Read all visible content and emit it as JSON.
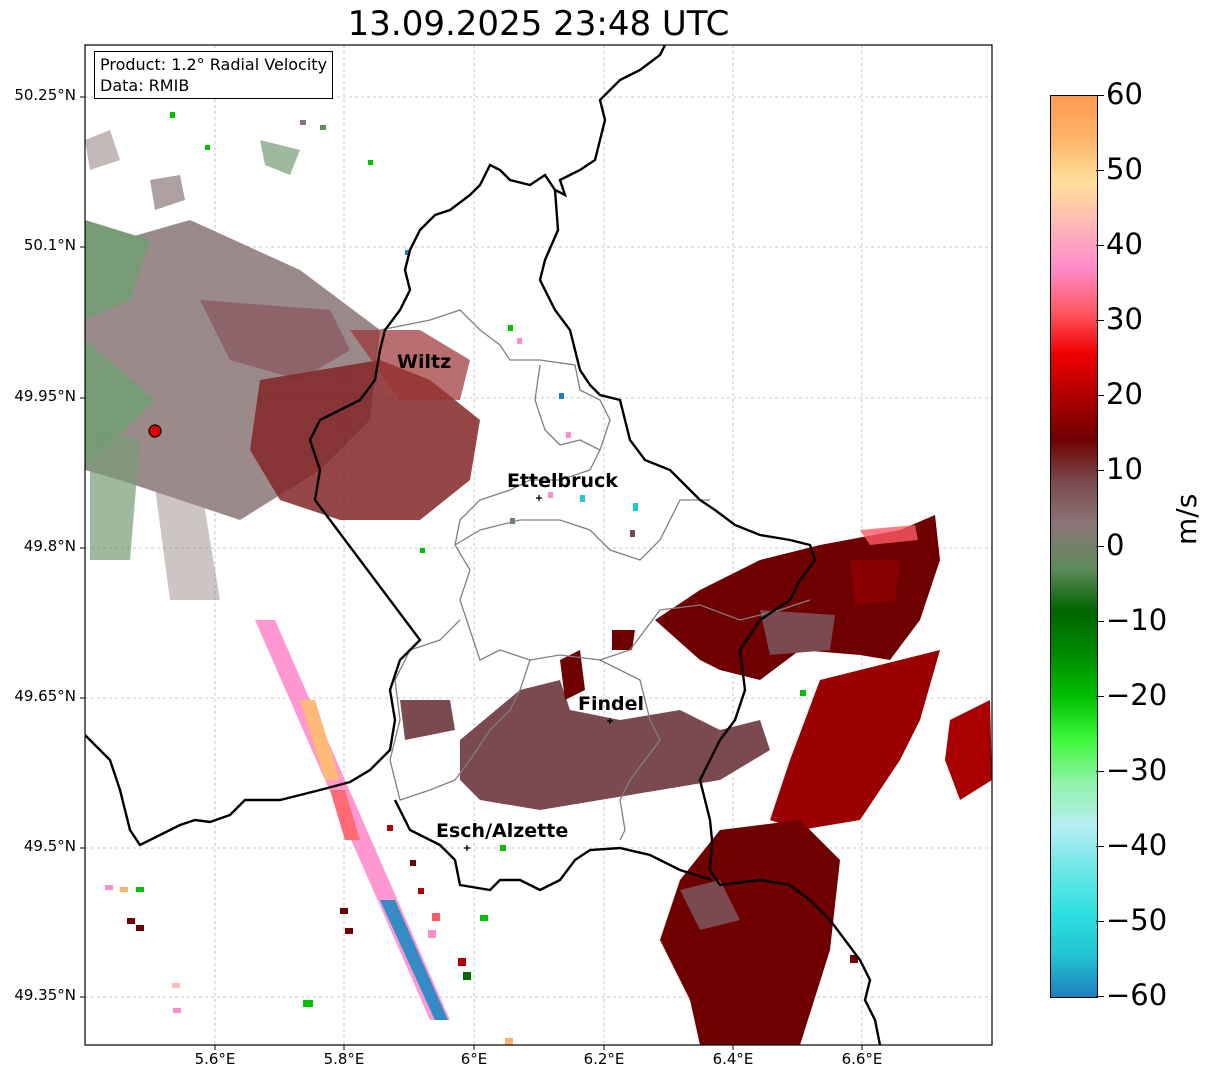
{
  "title": "13.09.2025 23:48 UTC",
  "info": {
    "product": "Product: 1.2° Radial Velocity",
    "data": "Data: RMIB"
  },
  "axes": {
    "lat_labels": [
      "50.25°N",
      "50.1°N",
      "49.95°N",
      "49.8°N",
      "49.65°N",
      "49.5°N",
      "49.35°N"
    ],
    "lon_labels": [
      "5.6°E",
      "5.8°E",
      "6°E",
      "6.2°E",
      "6.4°E",
      "6.6°E"
    ],
    "gridlines": true
  },
  "cities": [
    {
      "name": "Wiltz"
    },
    {
      "name": "Ettelbruck"
    },
    {
      "name": "Findel"
    },
    {
      "name": "Esch/Alzette"
    }
  ],
  "colorbar": {
    "unit": "m/s",
    "range": [
      -60,
      60
    ],
    "tick_labels": [
      "60",
      "50",
      "40",
      "30",
      "20",
      "10",
      "0",
      "−10",
      "−20",
      "−30",
      "−40",
      "−50",
      "−60"
    ],
    "colors": [
      "#1f7fbf",
      "#22c5d4",
      "#2fe0e0",
      "#6fe7e8",
      "#b6eef2",
      "#8ff2a8",
      "#3ff83c",
      "#00c000",
      "#008a00",
      "#006400",
      "#5f8a5d",
      "#8a7676",
      "#7a4a50",
      "#6f0000",
      "#b00000",
      "#f10000",
      "#ff5a66",
      "#ff8ccc",
      "#ffb7b7",
      "#ffe09a",
      "#ffb36a",
      "#ff9a50"
    ]
  },
  "colors": {
    "radar_site": "#e00000",
    "border_national": "#000000",
    "border_canton": "#808080"
  }
}
